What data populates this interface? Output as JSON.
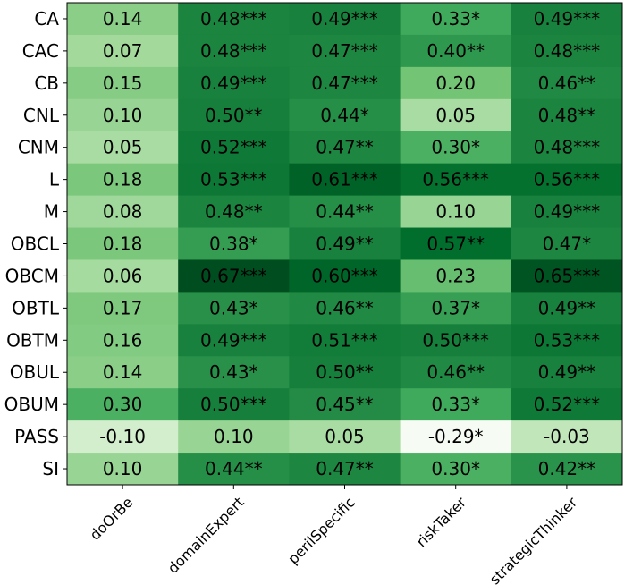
{
  "chart_data": {
    "type": "heatmap",
    "title": "",
    "xlabel": "",
    "ylabel": "",
    "columns": [
      "doOrBe",
      "domainExpert",
      "perilSpecific",
      "riskTaker",
      "strategicThinker"
    ],
    "rows": [
      "CA",
      "CAC",
      "CB",
      "CNL",
      "CNM",
      "L",
      "M",
      "OBCL",
      "OBCM",
      "OBTL",
      "OBTM",
      "OBUL",
      "OBUM",
      "PASS",
      "SI"
    ],
    "values": [
      [
        0.14,
        0.48,
        0.49,
        0.33,
        0.49
      ],
      [
        0.07,
        0.48,
        0.47,
        0.4,
        0.48
      ],
      [
        0.15,
        0.49,
        0.47,
        0.2,
        0.46
      ],
      [
        0.1,
        0.5,
        0.44,
        0.05,
        0.48
      ],
      [
        0.05,
        0.52,
        0.47,
        0.3,
        0.48
      ],
      [
        0.18,
        0.53,
        0.61,
        0.56,
        0.56
      ],
      [
        0.08,
        0.48,
        0.44,
        0.1,
        0.49
      ],
      [
        0.18,
        0.38,
        0.49,
        0.57,
        0.47
      ],
      [
        0.06,
        0.67,
        0.6,
        0.23,
        0.65
      ],
      [
        0.17,
        0.43,
        0.46,
        0.37,
        0.49
      ],
      [
        0.16,
        0.49,
        0.51,
        0.5,
        0.53
      ],
      [
        0.14,
        0.43,
        0.5,
        0.46,
        0.49
      ],
      [
        0.3,
        0.5,
        0.45,
        0.33,
        0.52
      ],
      [
        -0.1,
        0.1,
        0.05,
        -0.29,
        -0.03
      ],
      [
        0.1,
        0.44,
        0.47,
        0.3,
        0.42
      ]
    ],
    "labels": [
      [
        "0.14",
        "0.48***",
        "0.49***",
        "0.33*",
        "0.49***"
      ],
      [
        "0.07",
        "0.48***",
        "0.47***",
        "0.40**",
        "0.48***"
      ],
      [
        "0.15",
        "0.49***",
        "0.47***",
        "0.20",
        "0.46**"
      ],
      [
        "0.10",
        "0.50**",
        "0.44*",
        "0.05",
        "0.48**"
      ],
      [
        "0.05",
        "0.52***",
        "0.47**",
        "0.30*",
        "0.48***"
      ],
      [
        "0.18",
        "0.53***",
        "0.61***",
        "0.56***",
        "0.56***"
      ],
      [
        "0.08",
        "0.48**",
        "0.44**",
        "0.10",
        "0.49***"
      ],
      [
        "0.18",
        "0.38*",
        "0.49**",
        "0.57**",
        "0.47*"
      ],
      [
        "0.06",
        "0.67***",
        "0.60***",
        "0.23",
        "0.65***"
      ],
      [
        "0.17",
        "0.43*",
        "0.46**",
        "0.37*",
        "0.49**"
      ],
      [
        "0.16",
        "0.49***",
        "0.51***",
        "0.50***",
        "0.53***"
      ],
      [
        "0.14",
        "0.43*",
        "0.50**",
        "0.46**",
        "0.49**"
      ],
      [
        "0.30",
        "0.50***",
        "0.45**",
        "0.33*",
        "0.52***"
      ],
      [
        "-0.10",
        "0.10",
        "0.05",
        "-0.29*",
        "-0.03"
      ],
      [
        "0.10",
        "0.44**",
        "0.47**",
        "0.30*",
        "0.42**"
      ]
    ],
    "colormap": "Greens",
    "color_range": [
      -0.3,
      0.7
    ],
    "grid": false,
    "legend": "none"
  }
}
